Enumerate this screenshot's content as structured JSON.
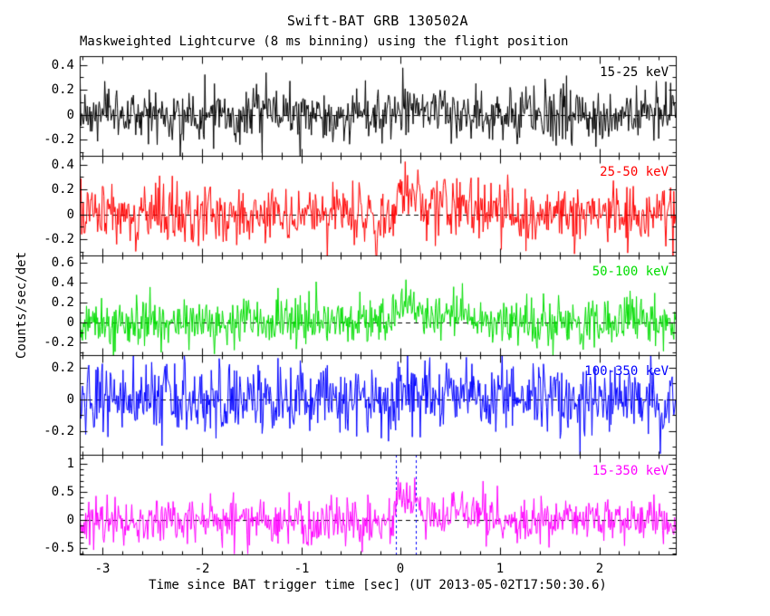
{
  "figure": {
    "title": "Swift-BAT GRB 130502A",
    "subtitle": "Maskweighted Lightcurve (8 ms binning) using the flight position",
    "xlabel": "Time since BAT trigger time [sec] (UT 2013-05-02T17:50:30.6)",
    "ylabel": "Counts/sec/det",
    "background_color": "#ffffff",
    "axis_color": "#000000"
  },
  "chart_data": {
    "type": "line",
    "title": "Swift-BAT GRB 130502A",
    "subtitle": "Maskweighted Lightcurve (8 ms binning) using the flight position",
    "xlabel": "Time since BAT trigger time [sec] (UT 2013-05-02T17:50:30.6)",
    "ylabel": "Counts/sec/det",
    "grid": false,
    "x_range": [
      -3.23,
      2.77
    ],
    "bin_width_sec": 0.008,
    "x_major_ticks": [
      -3,
      -2,
      -1,
      0,
      1,
      2
    ],
    "x_major_tick_labels": [
      "-3",
      "-2",
      "-1",
      "0",
      "1",
      "2"
    ],
    "x_minor_step": 0.2,
    "zero_line": {
      "color": "#000000",
      "dash": [
        5,
        4
      ]
    },
    "burst_markers": {
      "panel_index": 4,
      "times": [
        -0.048,
        0.152
      ],
      "color": "#0000ff",
      "dash": [
        3,
        3
      ]
    },
    "panels": [
      {
        "label": "15-25 keV",
        "color": "#000000",
        "ylim": [
          -0.33,
          0.47
        ],
        "yticks": [
          -0.2,
          0,
          0.2,
          0.4
        ],
        "ytick_labels": [
          "-0.2",
          "0",
          "0.2",
          "0.4"
        ],
        "y_minor_step": 0.1,
        "noise_sigma": 0.105,
        "burst": {
          "amp": 0.1,
          "t0": 0.0,
          "rise": 0.03,
          "decay": 0.18,
          "amp2": 0.04,
          "t2": 0.55,
          "w2": 0.12
        },
        "seed": 7
      },
      {
        "label": "25-50 keV",
        "color": "#ff0000",
        "ylim": [
          -0.33,
          0.47
        ],
        "yticks": [
          -0.2,
          0,
          0.2,
          0.4
        ],
        "ytick_labels": [
          "-0.2",
          "0",
          "0.2",
          "0.4"
        ],
        "y_minor_step": 0.1,
        "noise_sigma": 0.12,
        "burst": {
          "amp": 0.26,
          "t0": 0.0,
          "rise": 0.03,
          "decay": 0.18,
          "amp2": 0.08,
          "t2": 0.55,
          "w2": 0.12
        },
        "seed": 13
      },
      {
        "label": "50-100 keV",
        "color": "#00dd00",
        "ylim": [
          -0.33,
          0.67
        ],
        "yticks": [
          -0.2,
          0,
          0.2,
          0.4,
          0.6
        ],
        "ytick_labels": [
          "-0.2",
          "0",
          "0.2",
          "0.4",
          "0.6"
        ],
        "y_minor_step": 0.1,
        "noise_sigma": 0.12,
        "burst": {
          "amp": 0.32,
          "t0": 0.0,
          "rise": 0.03,
          "decay": 0.18,
          "amp2": 0.08,
          "t2": 0.55,
          "w2": 0.12
        },
        "seed": 29
      },
      {
        "label": "100-350 keV",
        "color": "#0000ff",
        "ylim": [
          -0.35,
          0.28
        ],
        "yticks": [
          -0.2,
          0,
          0.2
        ],
        "ytick_labels": [
          "-0.2",
          "0",
          "0.2"
        ],
        "y_minor_step": 0.1,
        "noise_sigma": 0.11,
        "burst": {
          "amp": 0.12,
          "t0": 0.0,
          "rise": 0.03,
          "decay": 0.15,
          "amp2": 0.04,
          "t2": 0.55,
          "w2": 0.12
        },
        "seed": 47
      },
      {
        "label": "15-350 keV",
        "color": "#ff00ff",
        "ylim": [
          -0.61,
          1.16
        ],
        "yticks": [
          -0.5,
          0,
          0.5,
          1
        ],
        "ytick_labels": [
          "-0.5",
          "0",
          "0.5",
          "1"
        ],
        "y_minor_step": 0.1,
        "noise_sigma": 0.21,
        "burst": {
          "amp": 0.6,
          "t0": 0.0,
          "rise": 0.03,
          "decay": 0.18,
          "amp2": 0.15,
          "t2": 0.55,
          "w2": 0.12
        },
        "seed": 83
      }
    ]
  }
}
